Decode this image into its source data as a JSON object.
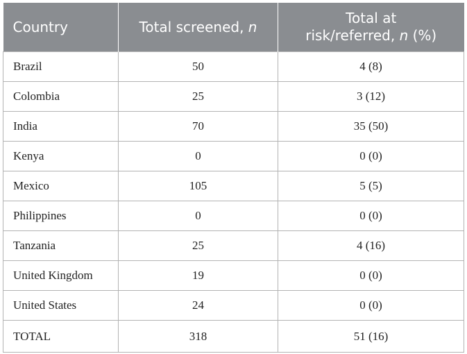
{
  "table": {
    "headers": {
      "country": "Country",
      "screened_prefix": "Total screened, ",
      "screened_italic": "n",
      "risk_line1": "Total at",
      "risk_line2_prefix": "risk/referred, ",
      "risk_line2_italic": "n",
      "risk_line2_suffix": " (%)"
    },
    "rows": [
      {
        "country": "Brazil",
        "screened": "50",
        "at_risk": "4 (8)"
      },
      {
        "country": "Colombia",
        "screened": "25",
        "at_risk": "3 (12)"
      },
      {
        "country": "India",
        "screened": "70",
        "at_risk": "35 (50)"
      },
      {
        "country": "Kenya",
        "screened": "0",
        "at_risk": "0 (0)"
      },
      {
        "country": "Mexico",
        "screened": "105",
        "at_risk": "5 (5)"
      },
      {
        "country": "Philippines",
        "screened": "0",
        "at_risk": "0 (0)"
      },
      {
        "country": "Tanzania",
        "screened": "25",
        "at_risk": "4 (16)"
      },
      {
        "country": "United Kingdom",
        "screened": "19",
        "at_risk": "0 (0)"
      },
      {
        "country": "United States",
        "screened": "24",
        "at_risk": "0 (0)"
      },
      {
        "country": "TOTAL",
        "screened": "318",
        "at_risk": "51 (16)"
      }
    ],
    "colors": {
      "header_bg": "#8a8d91",
      "header_text": "#ffffff",
      "grid": "#b3b3b3"
    }
  }
}
